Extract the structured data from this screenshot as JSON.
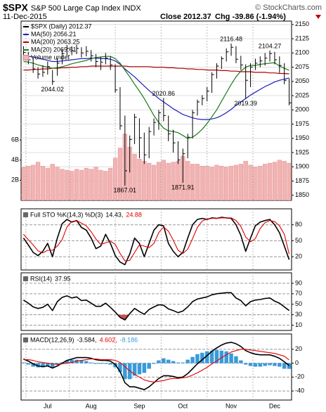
{
  "header": {
    "symbol": "$SPX",
    "name": "S&P 500 Large Cap Index INDX",
    "credit": "© StockCharts.com",
    "date": "11-Dec-2015",
    "close": "Close 2012.37",
    "change": "Chg -39.86 (-1.94%)"
  },
  "chart_data": [
    {
      "type": "ohlc",
      "name": "$SPX (Daily) 2012.37",
      "color": "#000000",
      "categories": [
        null,
        null,
        null,
        null,
        null,
        "Jul",
        null,
        null,
        null,
        null,
        null,
        null,
        null,
        null,
        "Aug",
        null,
        null,
        null,
        null,
        null,
        null,
        null,
        null,
        null,
        "Sep",
        null,
        null,
        null,
        null,
        null,
        null,
        null,
        null,
        "Oct",
        null,
        null,
        null,
        null,
        null,
        null,
        null,
        null,
        null,
        "Nov",
        null,
        null,
        null,
        null,
        null,
        null,
        null,
        null,
        "Dec",
        null,
        null,
        null
      ],
      "high": [
        2112,
        2102,
        2090,
        2075,
        2078,
        2085,
        2070,
        2090,
        2106,
        2114,
        2112,
        2115,
        2110,
        2112,
        2105,
        2098,
        2093,
        2100,
        2094,
        2080,
        2040,
        1990,
        1955,
        1993,
        1985,
        1960,
        1970,
        1985,
        2000,
        2020.86,
        1990,
        1965,
        1945,
        1932,
        1958,
        2000,
        2018,
        2026,
        2040,
        2066,
        2082,
        2094,
        2108,
        2116.48,
        2112,
        2095,
        2080,
        2082,
        2090,
        2094,
        2100,
        2104.27,
        2102,
        2094,
        2082,
        2055
      ],
      "low": [
        2088,
        2080,
        2065,
        2055,
        2058,
        2062,
        2044.02,
        2060,
        2080,
        2095,
        2096,
        2098,
        2092,
        2094,
        2085,
        2075,
        2070,
        2080,
        2070,
        2030,
        1965,
        1867.01,
        1890,
        1940,
        1915,
        1905,
        1915,
        1955,
        1965,
        1980,
        1945,
        1925,
        1905,
        1871.91,
        1915,
        1950,
        1990,
        2008,
        2015,
        2030,
        2055,
        2072,
        2085,
        2095,
        2082,
        2070,
        2019.39,
        2040,
        2070,
        2075,
        2078,
        2085,
        2080,
        2065,
        2045,
        2008
      ],
      "close": [
        2101,
        2088,
        2072,
        2063,
        2066,
        2076,
        2050,
        2082,
        2099,
        2108,
        2104,
        2108,
        2100,
        2103,
        2095,
        2085,
        2084,
        2091,
        2079,
        2035,
        1972,
        1893,
        1948,
        1987,
        1951,
        1921,
        1962,
        1978,
        1995,
        1990,
        1958,
        1942,
        1912,
        1923,
        1952,
        1995,
        2014,
        2020,
        2033,
        2062,
        2077,
        2090,
        2102,
        2110,
        2089,
        2079,
        2052,
        2075,
        2082,
        2086,
        2091,
        2099,
        2088,
        2078,
        2052,
        2012.37
      ],
      "ylim": [
        1841,
        2156
      ],
      "yticks": [
        1850,
        1875,
        1900,
        1925,
        1950,
        1975,
        2000,
        2025,
        2050,
        2075,
        2100,
        2125,
        2150
      ],
      "grid": true,
      "series": [
        {
          "name": "MA(50) 2056.21",
          "color": "#1f1fbf",
          "values": [
            2095,
            2094,
            2093,
            2091,
            2089,
            2087,
            2085,
            2085,
            2086,
            2087,
            2088,
            2089,
            2090,
            2090,
            2091,
            2091,
            2090,
            2090,
            2089,
            2086,
            2080,
            2072,
            2065,
            2058,
            2050,
            2042,
            2034,
            2027,
            2020,
            2014,
            2008,
            2002,
            1997,
            1992,
            1989,
            1986,
            1984,
            1983,
            1983,
            1984,
            1986,
            1990,
            1995,
            2001,
            2008,
            2014,
            2020,
            2026,
            2031,
            2036,
            2041,
            2045,
            2049,
            2052,
            2054,
            2056.21
          ]
        },
        {
          "name": "MA(200) 2063.25",
          "color": "#b00000",
          "values": [
            2070,
            2070,
            2071,
            2071,
            2072,
            2072,
            2073,
            2073,
            2074,
            2074,
            2075,
            2075,
            2076,
            2076,
            2077,
            2077,
            2077,
            2077,
            2077,
            2077,
            2077,
            2077,
            2076,
            2076,
            2076,
            2076,
            2076,
            2075,
            2075,
            2075,
            2074,
            2074,
            2073,
            2073,
            2072,
            2072,
            2071,
            2071,
            2070,
            2070,
            2070,
            2069,
            2069,
            2068,
            2068,
            2067,
            2067,
            2067,
            2066,
            2066,
            2066,
            2065,
            2065,
            2064,
            2064,
            2063.25
          ]
        },
        {
          "name": "MA(20) 2069.61",
          "color": "#1a7a1a",
          "values": [
            2085,
            2084,
            2082,
            2079,
            2077,
            2075,
            2073,
            2074,
            2076,
            2078,
            2081,
            2083,
            2085,
            2087,
            2090,
            2092,
            2093,
            2094,
            2094,
            2090,
            2082,
            2070,
            2058,
            2045,
            2033,
            2020,
            2005,
            1990,
            1978,
            1968,
            1963,
            1962,
            1960,
            1955,
            1950,
            1952,
            1958,
            1966,
            1976,
            1988,
            2000,
            2015,
            2030,
            2045,
            2058,
            2068,
            2075,
            2078,
            2078,
            2080,
            2081,
            2082,
            2083,
            2077,
            2073,
            2069.61
          ]
        }
      ],
      "volume": {
        "name": "Volume undef",
        "color": "#f2b3b3",
        "values": [
          3300000000.0,
          3400000000.0,
          3500000000.0,
          3800000000.0,
          3400000000.0,
          3200000000.0,
          3600000000.0,
          3300000000.0,
          3100000000.0,
          3000000000.0,
          2900000000.0,
          3100000000.0,
          3000000000.0,
          3200000000.0,
          3100000000.0,
          3300000000.0,
          3000000000.0,
          2900000000.0,
          3200000000.0,
          4200000000.0,
          5200000000.0,
          6600000000.0,
          5300000000.0,
          4600000000.0,
          4100000000.0,
          3900000000.0,
          3700000000.0,
          3500000000.0,
          3800000000.0,
          4000000000.0,
          3700000000.0,
          3800000000.0,
          3900000000.0,
          4400000000.0,
          3900000000.0,
          3600000000.0,
          3600000000.0,
          3400000000.0,
          3400000000.0,
          3300000000.0,
          3500000000.0,
          3400000000.0,
          3300000000.0,
          3400000000.0,
          3500000000.0,
          3600000000.0,
          3900000000.0,
          3500000000.0,
          3300000000.0,
          3400000000.0,
          3600000000.0,
          3700000000.0,
          3800000000.0,
          4000000000.0,
          3900000000.0,
          3700000000.0
        ],
        "ylim": [
          0,
          17800000000
        ],
        "yticks": [
          {
            "value": 2000000000,
            "label": "2B"
          },
          {
            "value": 4000000000,
            "label": "4B"
          },
          {
            "value": 6000000000,
            "label": "6B"
          }
        ]
      },
      "annotations": [
        "2116.48",
        "2104.27",
        "2044.02",
        "2020.86",
        "2019.39",
        "1867.01",
        "1871.91"
      ]
    },
    {
      "type": "line",
      "title": "Full STO %K(14,3) %D(3)",
      "ylim": [
        -5,
        110
      ],
      "yticks": [
        20,
        50,
        80
      ],
      "series": [
        {
          "label": "14.43,",
          "color": "#000000",
          "values": [
            55,
            42,
            28,
            22,
            30,
            45,
            20,
            55,
            82,
            90,
            85,
            88,
            75,
            70,
            55,
            35,
            40,
            62,
            45,
            22,
            10,
            5,
            25,
            55,
            45,
            20,
            45,
            70,
            80,
            78,
            45,
            30,
            20,
            28,
            55,
            80,
            90,
            92,
            90,
            93,
            92,
            94,
            93,
            92,
            80,
            60,
            30,
            55,
            78,
            85,
            88,
            90,
            80,
            65,
            40,
            14.43
          ]
        },
        {
          "label": "24.88",
          "color": "#e00000",
          "values": [
            62,
            52,
            42,
            31,
            27,
            32,
            32,
            40,
            52,
            76,
            86,
            88,
            83,
            78,
            67,
            53,
            43,
            46,
            49,
            43,
            26,
            12,
            13,
            28,
            42,
            40,
            37,
            45,
            65,
            76,
            68,
            51,
            32,
            26,
            34,
            54,
            75,
            87,
            91,
            92,
            92,
            93,
            93,
            93,
            88,
            77,
            57,
            48,
            54,
            73,
            84,
            88,
            86,
            78,
            62,
            24.88
          ]
        }
      ]
    },
    {
      "type": "line",
      "title": "RSI(14)",
      "ylim": [
        0,
        110
      ],
      "yticks": [
        10,
        30,
        50,
        70,
        90
      ],
      "fill_below": 30,
      "fill_color": "#c85050",
      "series": [
        {
          "label": "37.95",
          "color": "#000000",
          "values": [
            58,
            52,
            45,
            42,
            44,
            50,
            38,
            55,
            63,
            66,
            62,
            64,
            57,
            58,
            52,
            46,
            46,
            52,
            44,
            35,
            25,
            20,
            32,
            42,
            36,
            31,
            40,
            45,
            49,
            48,
            41,
            38,
            34,
            37,
            45,
            55,
            60,
            62,
            64,
            68,
            70,
            71,
            72,
            72,
            62,
            57,
            47,
            55,
            58,
            59,
            61,
            62,
            56,
            52,
            45,
            37.95
          ]
        }
      ]
    },
    {
      "type": "line",
      "title": "MACD(12,26,9)",
      "ylim": [
        -53,
        42
      ],
      "yticks": [
        -40,
        -20,
        0,
        20
      ],
      "series": [
        {
          "label": "-3.584,",
          "color": "#000000",
          "values": [
            6,
            3,
            -1,
            -4,
            -5,
            -4,
            -7,
            -4,
            0,
            4,
            6,
            8,
            8,
            8,
            7,
            5,
            4,
            4,
            3,
            -2,
            -12,
            -28,
            -34,
            -34,
            -36,
            -38,
            -34,
            -28,
            -22,
            -18,
            -18,
            -19,
            -21,
            -20,
            -15,
            -8,
            -1,
            5,
            11,
            17,
            22,
            26,
            29,
            30,
            28,
            24,
            18,
            15,
            13,
            12,
            12,
            12,
            10,
            7,
            2,
            -3.584
          ]
        },
        {
          "label": "4.602,",
          "color": "#e00000",
          "values": [
            5,
            5,
            4,
            2,
            1,
            0,
            -1,
            -2,
            -1,
            0,
            1,
            3,
            4,
            5,
            6,
            6,
            5,
            5,
            5,
            4,
            1,
            -5,
            -11,
            -16,
            -20,
            -24,
            -26,
            -27,
            -26,
            -25,
            -23,
            -22,
            -22,
            -21,
            -20,
            -17,
            -14,
            -10,
            -6,
            -1,
            3,
            8,
            12,
            16,
            18,
            20,
            20,
            19,
            18,
            17,
            16,
            15,
            14,
            12,
            10,
            4.602
          ]
        },
        {
          "label": "-8.186",
          "color": "#3a9ad9",
          "kind": "bar",
          "values": [
            1,
            -2,
            -5,
            -6,
            -6,
            -4,
            -6,
            -2,
            1,
            4,
            5,
            5,
            4,
            3,
            1,
            -1,
            -1,
            -1,
            -2,
            -6,
            -13,
            -23,
            -23,
            -18,
            -16,
            -14,
            -8,
            -1,
            4,
            7,
            5,
            3,
            1,
            1,
            5,
            9,
            13,
            15,
            17,
            18,
            19,
            18,
            17,
            14,
            10,
            4,
            -2,
            -4,
            -5,
            -5,
            -4,
            -3,
            -4,
            -5,
            -8,
            -8.186
          ]
        }
      ]
    }
  ]
}
